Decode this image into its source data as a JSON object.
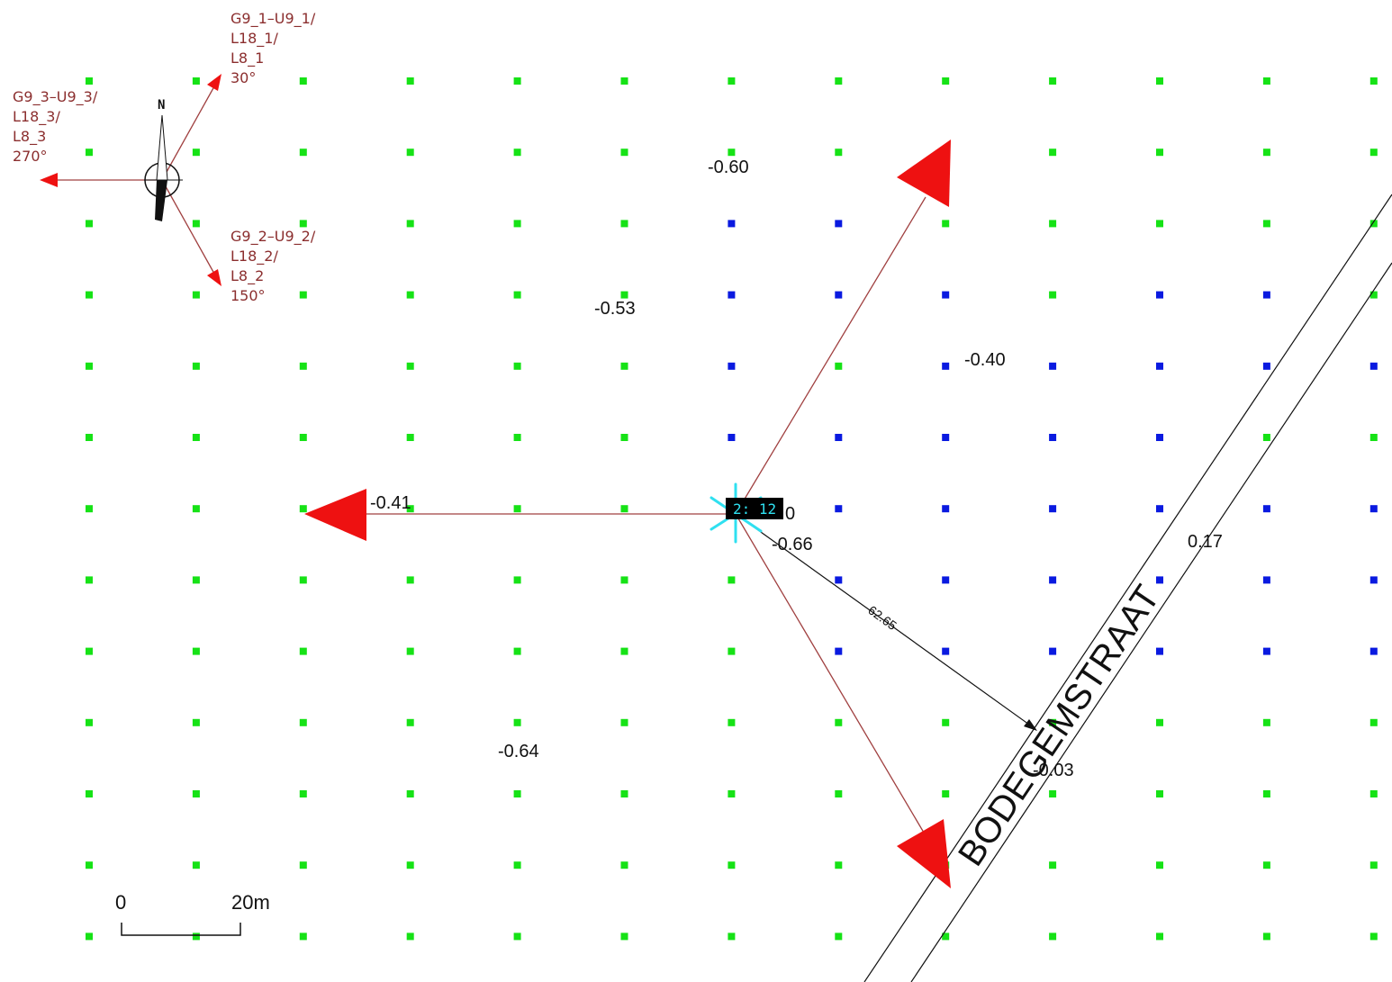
{
  "map": {
    "grid": {
      "cols": 13,
      "rows": 13,
      "default_color": "#16e216",
      "inner_color": "#0a1ae0",
      "inner_points": [
        [
          2,
          7
        ],
        [
          3,
          7
        ],
        [
          4,
          7
        ],
        [
          5,
          7
        ],
        [
          6,
          7
        ],
        [
          2,
          8
        ],
        [
          3,
          8
        ],
        [
          5,
          8
        ],
        [
          6,
          8
        ],
        [
          7,
          8
        ],
        [
          8,
          8
        ],
        [
          3,
          9
        ],
        [
          4,
          9
        ],
        [
          5,
          9
        ],
        [
          6,
          9
        ],
        [
          7,
          9
        ],
        [
          8,
          9
        ],
        [
          4,
          10
        ],
        [
          5,
          10
        ],
        [
          6,
          10
        ],
        [
          7,
          10
        ],
        [
          8,
          10
        ],
        [
          3,
          11
        ],
        [
          4,
          11
        ],
        [
          5,
          11
        ],
        [
          6,
          11
        ],
        [
          7,
          11
        ],
        [
          8,
          11
        ],
        [
          3,
          12
        ],
        [
          4,
          12
        ],
        [
          6,
          12
        ],
        [
          7,
          12
        ],
        [
          8,
          12
        ],
        [
          4,
          13
        ],
        [
          6,
          13
        ],
        [
          7,
          13
        ],
        [
          8,
          13
        ],
        [
          6,
          14
        ],
        [
          7,
          14
        ],
        [
          8,
          14
        ]
      ]
    },
    "compass": {
      "north_label": "N",
      "directions": [
        {
          "id": "dir-30",
          "lines": [
            "G9_1–U9_1/",
            "L18_1/",
            "L8_1",
            "30°"
          ]
        },
        {
          "id": "dir-270",
          "lines": [
            "G9_3–U9_3/",
            "L18_3/",
            "L8_3",
            "270°"
          ]
        },
        {
          "id": "dir-150",
          "lines": [
            "G9_2–U9_2/",
            "L18_2/",
            "L8_2",
            "150°"
          ]
        }
      ],
      "arrow_color": "#c0392b",
      "label_color": "#8b2e2e"
    },
    "values": [
      {
        "id": "val-n",
        "text": "-0.60"
      },
      {
        "id": "val-nw",
        "text": "-0.53"
      },
      {
        "id": "val-ne",
        "text": "-0.40"
      },
      {
        "id": "val-w",
        "text": "-0.41"
      },
      {
        "id": "val-center",
        "text": "-0.66"
      },
      {
        "id": "val-center-2",
        "text": "0"
      },
      {
        "id": "val-e",
        "text": "0.17"
      },
      {
        "id": "val-sw",
        "text": "-0.64"
      },
      {
        "id": "val-se",
        "text": "-0.03"
      }
    ],
    "distance_label": "62.65",
    "selection_label": "2: 12",
    "street_name": "BODEGEMSTRAAT",
    "scale": {
      "start": "0",
      "end": "20m"
    },
    "colors": {
      "big_arrow": "#ee1111",
      "thin_arrow": "#a04040",
      "selection_box": "#000000",
      "selection_text": "#2fe0f0"
    }
  }
}
